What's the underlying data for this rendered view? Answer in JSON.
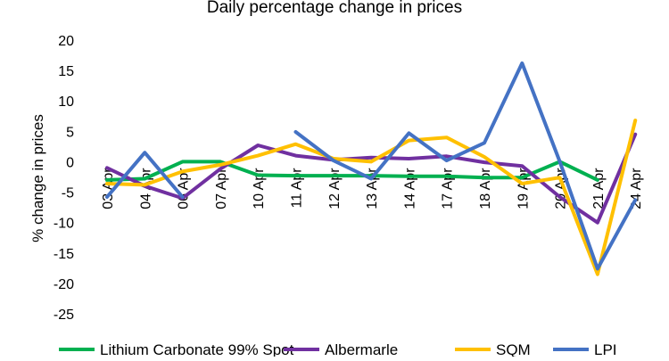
{
  "chart_data": {
    "type": "line",
    "title": "Daily percentage change in prices",
    "xlabel": "",
    "ylabel": "% change in prices",
    "ylim": [
      -25,
      20
    ],
    "yticks": [
      20,
      15,
      10,
      5,
      0,
      -5,
      -10,
      -15,
      -20,
      -25
    ],
    "grid": false,
    "legend_position": "bottom",
    "categories": [
      "03 Apr",
      "04 Apr",
      "06 Apr",
      "07 Apr",
      "10 Apr",
      "11 Apr",
      "12 Apr",
      "13 Apr",
      "14 Apr",
      "17 Apr",
      "18 Apr",
      "19 Apr",
      "20 Apr",
      "21 Apr",
      "24 Apr"
    ],
    "series": [
      {
        "name": "Lithium Carbonate 99% Spot",
        "color": "#00B050",
        "values": [
          -3.0,
          -2.8,
          0.0,
          0.0,
          -2.2,
          -2.3,
          -2.3,
          -2.3,
          -2.4,
          -2.4,
          -2.6,
          -2.6,
          0.0,
          -3.0,
          null
        ]
      },
      {
        "name": "Albermarle",
        "color": "#7030A0",
        "values": [
          -1.0,
          -4.0,
          -6.0,
          -1.2,
          2.7,
          1.0,
          0.3,
          0.7,
          0.5,
          0.9,
          -0.1,
          -0.7,
          -5.8,
          -10.0,
          4.5
        ]
      },
      {
        "name": "SQM",
        "color": "#FFC000",
        "values": [
          -3.6,
          -3.8,
          -1.6,
          -0.5,
          1.0,
          2.9,
          0.5,
          0.0,
          3.5,
          4.0,
          0.8,
          -3.6,
          -2.6,
          -18.5,
          6.8
        ]
      },
      {
        "name": "LPI",
        "color": "#4472C4",
        "values": [
          -5.8,
          1.5,
          -5.8,
          null,
          null,
          4.9,
          0.2,
          -2.8,
          4.7,
          0.2,
          3.1,
          16.2,
          0.0,
          -17.6,
          -6.3
        ]
      }
    ]
  }
}
